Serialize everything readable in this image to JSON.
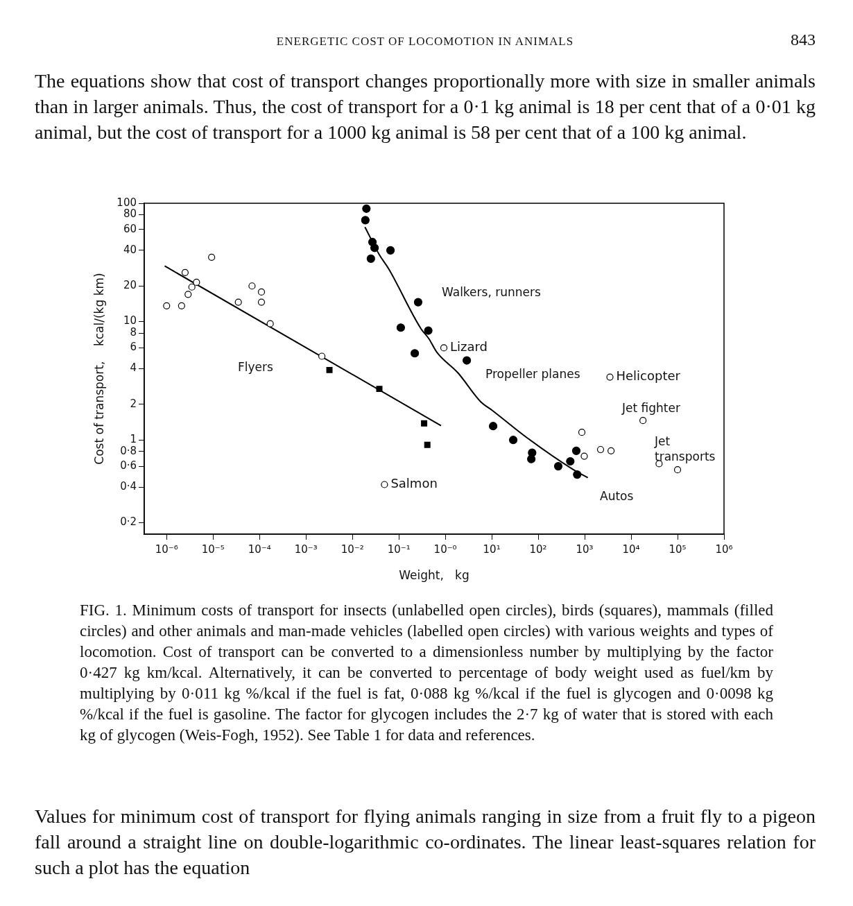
{
  "chart_data": {
    "type": "scatter",
    "title": "ENERGETIC COST OF LOCOMOTION IN ANIMALS",
    "subtitle": "The equations show that cost of transport changes proportionally more with size in smaller animals than in larger animals. Thus, the cost of transport for a 0·1 kg animal is 18 per cent that of a 0·01 kg animal, but the cost of transport for a 1000 kg animal is 58 per cent that of a 100 kg animal.",
    "xlabel": "Weight,   kg",
    "ylabel": "Cost of transport,    kcal/(kg km)",
    "log": "xy",
    "grid": false,
    "legend": false,
    "xlim": [
      3.3e-07,
      1000000
    ],
    "xticks": [
      {
        "value": 1e-06,
        "label": "10⁻⁶"
      },
      {
        "value": 1e-05,
        "label": "10⁻⁵"
      },
      {
        "value": 0.0001,
        "label": "10⁻⁴"
      },
      {
        "value": 0.001,
        "label": "10⁻³"
      },
      {
        "value": 0.01,
        "label": "10⁻²"
      },
      {
        "value": 0.1,
        "label": "10⁻¹"
      },
      {
        "value": 1,
        "label": "10⁻⁰"
      },
      {
        "value": 10,
        "label": "10¹"
      },
      {
        "value": 100,
        "label": "10²"
      },
      {
        "value": 1000,
        "label": "10³"
      },
      {
        "value": 10000,
        "label": "10⁴"
      },
      {
        "value": 100000,
        "label": "10⁵"
      },
      {
        "value": 1000000,
        "label": "10⁶"
      }
    ],
    "ylim": [
      0.16,
      100
    ],
    "yticks": [
      {
        "value": 0.2,
        "label": "0·2"
      },
      {
        "value": 0.4,
        "label": "0·4"
      },
      {
        "value": 0.6,
        "label": "0·6"
      },
      {
        "value": 0.8,
        "label": "0·8"
      },
      1,
      2,
      4,
      6,
      8,
      10,
      20,
      40,
      60,
      80,
      100
    ],
    "series": [
      {
        "marker": "circle",
        "color": "#ffffff",
        "x": [
          1e-06,
          2.1e-06,
          2.5e-06,
          2.9e-06,
          3.5e-06,
          4.4e-06,
          9.3e-06,
          3.5e-05,
          6.9e-05,
          0.00011,
          0.00011,
          0.00017,
          0.0022
        ],
        "values": [
          13.6,
          13.6,
          26,
          17,
          19.6,
          21.5,
          35,
          14.6,
          20,
          17.8,
          14.6,
          9.6,
          5.1
        ]
      },
      {
        "marker": "square",
        "color": "#000000",
        "x": [
          0.0032,
          0.038,
          0.35,
          0.41
        ],
        "values": [
          3.9,
          2.7,
          1.38,
          0.91
        ]
      },
      {
        "marker": "circle",
        "color": "#000000",
        "x": [
          0.02,
          0.019,
          0.027,
          0.03,
          0.025,
          0.066,
          0.26,
          0.11,
          0.43,
          0.22,
          2.9,
          10.7,
          29,
          74,
          71,
          270,
          490,
          660,
          690
        ],
        "values": [
          90,
          72,
          47,
          42,
          34,
          40,
          14.6,
          8.9,
          8.4,
          5.4,
          4.7,
          1.31,
          1,
          0.78,
          0.69,
          0.6,
          0.66,
          0.81,
          0.51
        ]
      },
      {
        "marker": "circle",
        "color": "#ffffff",
        "x": [
          0.93,
          0.049,
          3500,
          18000,
          870,
          980,
          2200,
          3700,
          40000,
          100000
        ],
        "values": [
          6,
          0.42,
          3.4,
          1.46,
          1.16,
          0.73,
          0.83,
          0.81,
          0.63,
          0.56
        ]
      },
      {
        "type": "line",
        "marker": "none",
        "line_style": "solid",
        "color": "#000000",
        "x": [
          9.1e-07,
          0.81
        ],
        "values": [
          29.5,
          1.32
        ]
      },
      {
        "type": "line",
        "marker": "none",
        "line_style": "solid",
        "color": "#000000",
        "x": [
          0.0186,
          0.038,
          0.06,
          0.3,
          0.44,
          0.66,
          1.86,
          5.8,
          10.2,
          58,
          575,
          1170
        ],
        "values": [
          63,
          36.7,
          28,
          8.7,
          7.2,
          5.5,
          3.7,
          2.1,
          1.78,
          1.04,
          0.56,
          0.48
        ]
      }
    ],
    "annotations": [
      "843",
      "FIG. 1. Minimum costs of transport for insects (unlabelled open circles), birds (squares), mammals (filled circles) and other animals and man-made vehicles (labelled open circles) with various weights and types of locomotion. Cost of transport can be converted to a dimensionless number by multiplying by the factor 0·427 kg km/kcal. Alternatively, it can be converted to percentage of body weight used as fuel/km by multiplying by 0·011 kg %/kcal if the fuel is fat, 0·088 kg %/kcal if the fuel is glycogen and 0·0098 kg %/kcal if the fuel is gasoline. The factor for glycogen includes the 2·7 kg of water that is stored with each kg of glycogen (Weis-Fogh, 1952). See Table 1 for data and references.",
      "Values for minimum cost of transport for flying animals ranging in size from a fruit fly to a pigeon fall around a straight line on double-logarithmic co-ordinates. The linear least-squares relation for such a plot has the equation",
      "Flyers",
      "Walkers, runners",
      "Propeller planes",
      "Jet fighter",
      "Jet\ntransports",
      "Autos",
      {
        "text": "Lizard",
        "x": 0.93,
        "y": 6
      },
      {
        "text": "Helicopter",
        "x": 3500,
        "y": 3.4
      },
      {
        "text": "Salmon",
        "x": 0.049,
        "y": 0.42
      }
    ]
  }
}
